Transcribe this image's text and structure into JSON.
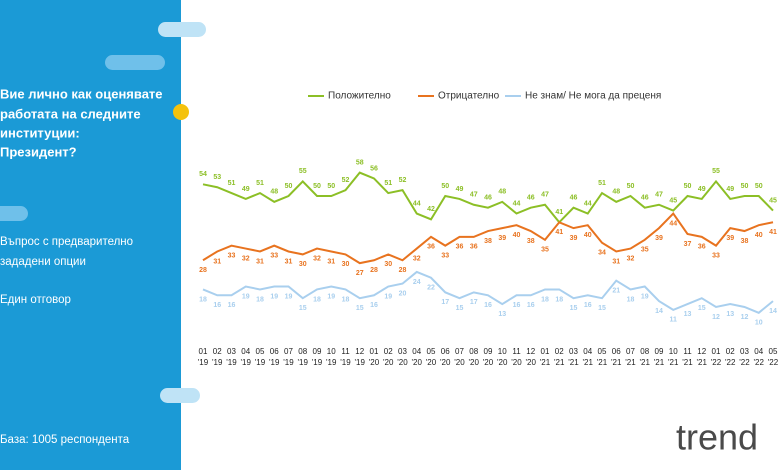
{
  "chart_data": {
    "type": "line",
    "question": [
      "Вие лично как оценявате",
      "работата на следните",
      "институции:",
      "Президент?"
    ],
    "notes": [
      "Въпрос с предварително",
      "зададени опции",
      "Един отговор"
    ],
    "base": "База:  1005 респондента",
    "logo": "trend",
    "categories": [
      "01 '19",
      "02 '19",
      "03 '19",
      "04 '19",
      "05 '19",
      "06 '19",
      "07 '19",
      "08 '19",
      "09 '19",
      "10 '19",
      "11 '19",
      "12 '19",
      "01 '20",
      "02 '20",
      "03 '20",
      "04 '20",
      "05 '20",
      "06 '20",
      "07 '20",
      "08 '20",
      "09 '20",
      "10 '20",
      "11 '20",
      "12 '20",
      "01 '21",
      "02 '21",
      "03 '21",
      "04 '21",
      "05 '21",
      "06 '21",
      "07 '21",
      "08 '21",
      "09 '21",
      "10 '21",
      "11 '21",
      "12 '21",
      "01 '22",
      "02 '22",
      "03 '22",
      "04 '22",
      "05 '22"
    ],
    "series": [
      {
        "name": "Положително",
        "color": "#8cbf26",
        "values": [
          54,
          53,
          51,
          49,
          51,
          48,
          50,
          55,
          50,
          50,
          52,
          58,
          56,
          51,
          52,
          44,
          42,
          50,
          49,
          47,
          46,
          48,
          44,
          46,
          47,
          41,
          46,
          44,
          51,
          48,
          50,
          46,
          47,
          45,
          50,
          49,
          55,
          49,
          50,
          50,
          45
        ]
      },
      {
        "name": "Отрицателно",
        "color": "#e8731f",
        "values": [
          28,
          31,
          33,
          32,
          31,
          33,
          31,
          30,
          32,
          31,
          30,
          27,
          28,
          30,
          28,
          32,
          36,
          33,
          36,
          36,
          38,
          39,
          40,
          38,
          35,
          41,
          39,
          40,
          34,
          31,
          32,
          35,
          39,
          44,
          37,
          36,
          33,
          39,
          38,
          40,
          41
        ]
      },
      {
        "name": "Не знам/ Не мога да преценя",
        "color": "#a9cfee",
        "values": [
          18,
          16,
          16,
          19,
          18,
          19,
          19,
          15,
          18,
          19,
          18,
          15,
          16,
          19,
          20,
          24,
          22,
          17,
          15,
          17,
          16,
          13,
          16,
          16,
          18,
          18,
          15,
          16,
          15,
          21,
          18,
          19,
          14,
          11,
          13,
          15,
          12,
          13,
          12,
          10,
          14
        ]
      }
    ]
  }
}
